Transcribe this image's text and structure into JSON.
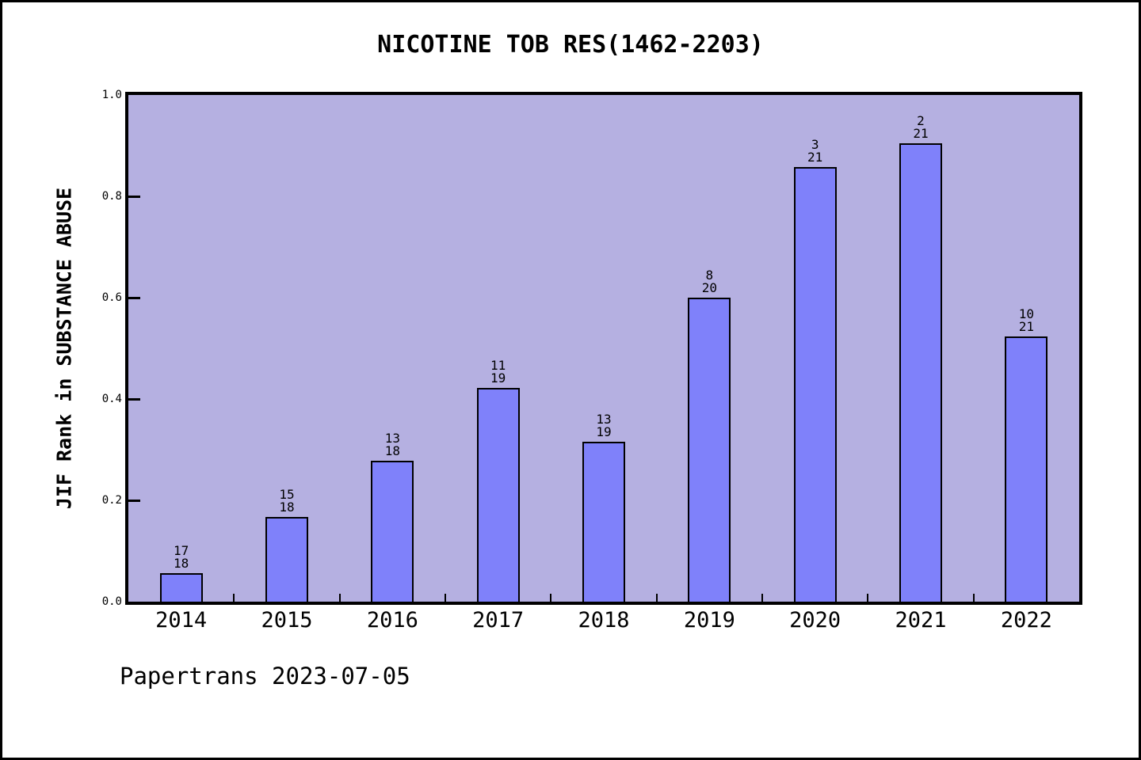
{
  "chart_data": {
    "type": "bar",
    "title": "NICOTINE TOB RES(1462-2203)",
    "xlabel": "",
    "ylabel": "JIF Rank in SUBSTANCE ABUSE",
    "categories": [
      "2014",
      "2015",
      "2016",
      "2017",
      "2018",
      "2019",
      "2020",
      "2021",
      "2022"
    ],
    "values": [
      0.0556,
      0.1667,
      0.2778,
      0.4211,
      0.3158,
      0.6,
      0.8571,
      0.9048,
      0.5238
    ],
    "bar_labels": [
      {
        "rank": "17",
        "total": "18"
      },
      {
        "rank": "15",
        "total": "18"
      },
      {
        "rank": "13",
        "total": "18"
      },
      {
        "rank": "11",
        "total": "19"
      },
      {
        "rank": "13",
        "total": "19"
      },
      {
        "rank": "8",
        "total": "20"
      },
      {
        "rank": "3",
        "total": "21"
      },
      {
        "rank": "2",
        "total": "21"
      },
      {
        "rank": "10",
        "total": "21"
      }
    ],
    "ytick_labels": [
      "0.0",
      "0.2",
      "0.4",
      "0.6",
      "0.8",
      "1.0"
    ],
    "ylim": [
      0.0,
      1.0
    ],
    "grid": false,
    "legend_position": "none",
    "colors": {
      "bar_fill": "#7f81fa",
      "bar_edge": "#000000",
      "plot_background": "#b5b0e1",
      "page_background": "#ffffff",
      "text": "#000000"
    }
  },
  "footer": {
    "text": "Papertrans 2023-07-05"
  }
}
